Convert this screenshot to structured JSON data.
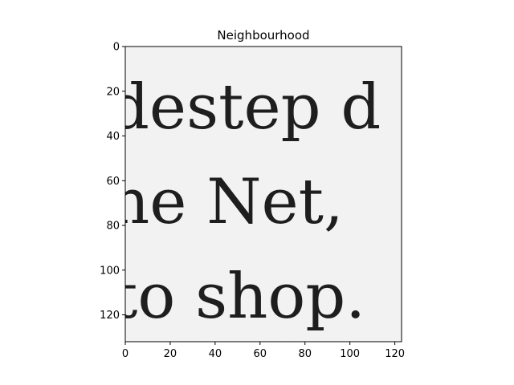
{
  "figure": {
    "title": "Neighbourhood",
    "x_ticks": [
      "0",
      "20",
      "40",
      "60",
      "80",
      "100",
      "120"
    ],
    "y_ticks": [
      "0",
      "20",
      "40",
      "60",
      "80",
      "100",
      "120"
    ],
    "x_range": [
      0,
      123
    ],
    "y_range": [
      0,
      132
    ],
    "image": {
      "description_lines": [
        "destep d",
        "he Net,",
        "to shop."
      ],
      "colormap": "gray",
      "background": "#f1f1f1",
      "ink": "#1e1e1e"
    }
  }
}
